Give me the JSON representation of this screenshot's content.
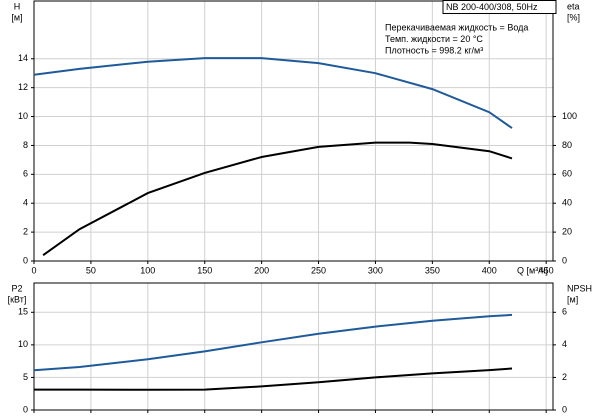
{
  "chart_data": [
    {
      "type": "line",
      "ylabel": "H",
      "yunit": "[м]",
      "y2label": "eta",
      "y2unit": "[%]",
      "xlabel": "Q [м³/ч]",
      "annotation_box": "NB 200-400/308, 50Hz",
      "annotations": [
        "Перекачиваемая жидкость = Вода",
        "Темп. жидкости = 20 °C",
        "Плотность = 998.2 кг/м³"
      ],
      "xlim": [
        0,
        456
      ],
      "xticks": [
        0,
        50,
        100,
        150,
        200,
        250,
        300,
        350,
        400,
        450
      ],
      "ylim": [
        0,
        18
      ],
      "yticks": [
        0,
        2,
        4,
        6,
        8,
        10,
        12,
        14
      ],
      "y2lim": [
        0,
        180
      ],
      "y2ticks": [
        0,
        20,
        40,
        60,
        80,
        100
      ],
      "grid": true,
      "series": [
        {
          "color": "#1f5a9a",
          "x": [
            0,
            40,
            100,
            150,
            200,
            250,
            300,
            350,
            400,
            420
          ],
          "values": [
            12.9,
            13.3,
            13.8,
            14.05,
            14.05,
            13.7,
            13.0,
            11.9,
            10.3,
            9.2
          ]
        },
        {
          "color": "#000000",
          "axis": "y2",
          "x": [
            8,
            40,
            100,
            150,
            200,
            250,
            300,
            330,
            350,
            400,
            420
          ],
          "values": [
            4,
            22,
            47,
            61,
            72,
            79,
            82,
            82,
            81,
            76,
            71
          ]
        }
      ]
    },
    {
      "type": "line",
      "ylabel": "P2",
      "yunit": "[кВт]",
      "y2label": "NPSH",
      "y2unit": "[м]",
      "xlim": [
        0,
        456
      ],
      "ylim": [
        0,
        19.5
      ],
      "yticks": [
        0,
        5,
        10,
        15
      ],
      "y2lim": [
        0,
        7.8
      ],
      "y2ticks": [
        0,
        2,
        4,
        6
      ],
      "grid": true,
      "series": [
        {
          "color": "#1f5a9a",
          "x": [
            0,
            40,
            100,
            150,
            200,
            250,
            300,
            350,
            400,
            420
          ],
          "values": [
            6.1,
            6.6,
            7.8,
            9.0,
            10.4,
            11.7,
            12.8,
            13.7,
            14.4,
            14.6
          ]
        },
        {
          "color": "#000000",
          "axis": "y2",
          "x": [
            0,
            40,
            100,
            150,
            200,
            250,
            300,
            350,
            400,
            420
          ],
          "values": [
            1.25,
            1.25,
            1.24,
            1.25,
            1.45,
            1.7,
            2.0,
            2.25,
            2.45,
            2.55
          ]
        }
      ]
    }
  ]
}
